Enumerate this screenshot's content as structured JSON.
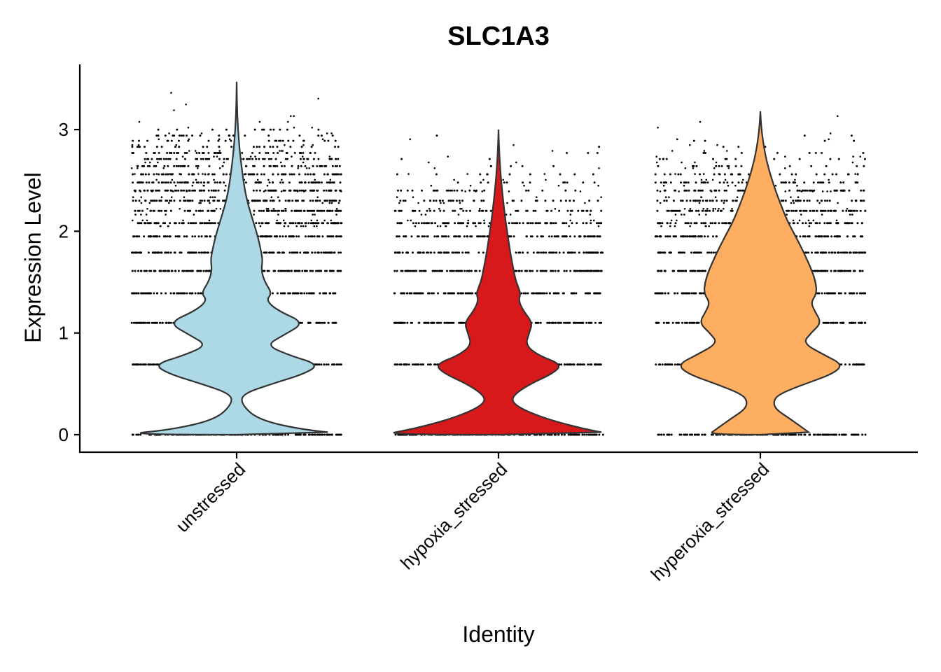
{
  "chart_data": {
    "type": "violin",
    "title": "SLC1A3",
    "xlabel": "Identity",
    "ylabel": "Expression Level",
    "ylim": [
      -0.16,
      3.65
    ],
    "yticks": [
      0,
      1,
      2,
      3
    ],
    "categories": [
      "unstressed",
      "hypoxia_stressed",
      "hyperoxia_stressed"
    ],
    "colors": [
      "#ADD8E6",
      "#D7191C",
      "#FDAE61"
    ],
    "max_values": [
      3.47,
      3.0,
      3.18
    ],
    "expression_levels": [
      0,
      0.69,
      1.1,
      1.39,
      1.61,
      1.79,
      1.95,
      2.08,
      2.2,
      2.3,
      2.4,
      2.48,
      2.56,
      2.64,
      2.71,
      2.77,
      2.83,
      2.89,
      2.94,
      3.0
    ],
    "density_profiles": [
      {
        "category": "unstressed",
        "points": [
          [
            0,
            1.0
          ],
          [
            0.05,
            0.55
          ],
          [
            0.15,
            0.18
          ],
          [
            0.3,
            0.04
          ],
          [
            0.4,
            0.05
          ],
          [
            0.5,
            0.3
          ],
          [
            0.6,
            0.58
          ],
          [
            0.69,
            0.7
          ],
          [
            0.78,
            0.45
          ],
          [
            0.88,
            0.25
          ],
          [
            0.98,
            0.4
          ],
          [
            1.1,
            0.58
          ],
          [
            1.22,
            0.35
          ],
          [
            1.32,
            0.25
          ],
          [
            1.39,
            0.3
          ],
          [
            1.5,
            0.24
          ],
          [
            1.61,
            0.21
          ],
          [
            1.72,
            0.22
          ],
          [
            1.79,
            0.21
          ],
          [
            1.95,
            0.18
          ],
          [
            2.1,
            0.14
          ],
          [
            2.25,
            0.1
          ],
          [
            2.4,
            0.07
          ],
          [
            2.6,
            0.045
          ],
          [
            2.8,
            0.025
          ],
          [
            3.0,
            0.012
          ],
          [
            3.2,
            0.004
          ],
          [
            3.47,
            0.0
          ]
        ]
      },
      {
        "category": "hypoxia_stressed",
        "points": [
          [
            0,
            1.0
          ],
          [
            0.05,
            0.75
          ],
          [
            0.15,
            0.42
          ],
          [
            0.25,
            0.2
          ],
          [
            0.33,
            0.11
          ],
          [
            0.4,
            0.14
          ],
          [
            0.5,
            0.27
          ],
          [
            0.6,
            0.46
          ],
          [
            0.69,
            0.54
          ],
          [
            0.78,
            0.34
          ],
          [
            0.88,
            0.23
          ],
          [
            1.0,
            0.26
          ],
          [
            1.1,
            0.29
          ],
          [
            1.22,
            0.21
          ],
          [
            1.32,
            0.17
          ],
          [
            1.39,
            0.19
          ],
          [
            1.5,
            0.15
          ],
          [
            1.61,
            0.13
          ],
          [
            1.79,
            0.1
          ],
          [
            1.95,
            0.08
          ],
          [
            2.1,
            0.06
          ],
          [
            2.3,
            0.04
          ],
          [
            2.5,
            0.022
          ],
          [
            2.7,
            0.01
          ],
          [
            2.85,
            0.004
          ],
          [
            3.0,
            0.0
          ]
        ]
      },
      {
        "category": "hyperoxia_stressed",
        "points": [
          [
            0,
            0.44
          ],
          [
            0.05,
            0.38
          ],
          [
            0.15,
            0.26
          ],
          [
            0.25,
            0.13
          ],
          [
            0.33,
            0.11
          ],
          [
            0.4,
            0.16
          ],
          [
            0.5,
            0.38
          ],
          [
            0.6,
            0.62
          ],
          [
            0.69,
            0.7
          ],
          [
            0.78,
            0.55
          ],
          [
            0.9,
            0.36
          ],
          [
            1.0,
            0.43
          ],
          [
            1.1,
            0.52
          ],
          [
            1.22,
            0.46
          ],
          [
            1.3,
            0.43
          ],
          [
            1.39,
            0.48
          ],
          [
            1.5,
            0.47
          ],
          [
            1.61,
            0.44
          ],
          [
            1.79,
            0.37
          ],
          [
            1.95,
            0.3
          ],
          [
            2.1,
            0.23
          ],
          [
            2.3,
            0.16
          ],
          [
            2.5,
            0.1
          ],
          [
            2.7,
            0.05
          ],
          [
            2.9,
            0.02
          ],
          [
            3.05,
            0.006
          ],
          [
            3.18,
            0.0
          ]
        ]
      }
    ],
    "point_density_profiles": [
      [
        [
          0,
          1.0
        ],
        [
          0.7,
          1.0
        ],
        [
          1.1,
          1.0
        ],
        [
          1.6,
          0.95
        ],
        [
          2.0,
          0.9
        ],
        [
          2.4,
          0.75
        ],
        [
          2.7,
          0.55
        ],
        [
          2.9,
          0.35
        ],
        [
          3.0,
          0.22
        ],
        [
          3.2,
          0.08
        ],
        [
          3.4,
          0.03
        ]
      ],
      [
        [
          0,
          1.0
        ],
        [
          0.7,
          1.0
        ],
        [
          1.1,
          1.0
        ],
        [
          1.6,
          0.9
        ],
        [
          2.0,
          0.75
        ],
        [
          2.3,
          0.45
        ],
        [
          2.5,
          0.25
        ],
        [
          2.7,
          0.1
        ],
        [
          3.0,
          0.02
        ]
      ],
      [
        [
          0,
          1.0
        ],
        [
          0.7,
          1.0
        ],
        [
          1.1,
          1.0
        ],
        [
          1.6,
          0.95
        ],
        [
          2.0,
          0.85
        ],
        [
          2.4,
          0.6
        ],
        [
          2.6,
          0.4
        ],
        [
          2.8,
          0.18
        ],
        [
          3.0,
          0.06
        ],
        [
          3.2,
          0.02
        ]
      ]
    ]
  }
}
